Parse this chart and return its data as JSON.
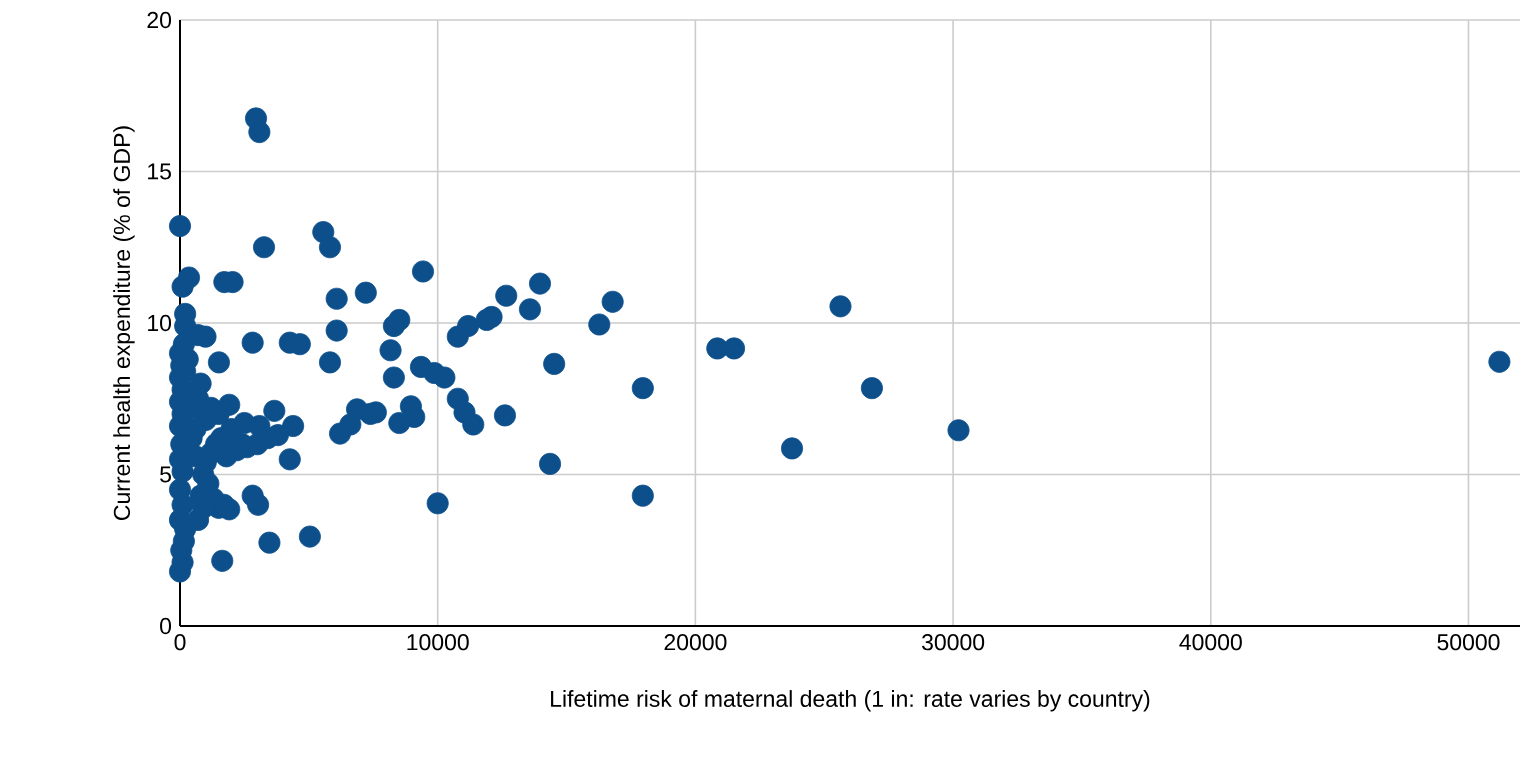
{
  "chart_data": {
    "type": "scatter",
    "xlabel": "Lifetime risk of maternal death (1 in: rate varies by country)",
    "ylabel": "Current health expenditure (% of GDP)",
    "color": "#0d4f8b",
    "marker": "circle",
    "grid": true,
    "xlim": [
      0,
      52000
    ],
    "xticks": [
      0,
      10000,
      20000,
      30000,
      40000,
      50000
    ],
    "ylim": [
      0,
      20
    ],
    "yticks": [
      0,
      5,
      10,
      15,
      20
    ],
    "x": [
      2950,
      3080,
      0,
      3260,
      5560,
      5820,
      100,
      350,
      1720,
      2040,
      9430,
      7210,
      6080,
      6080,
      5820,
      200,
      200,
      990,
      2820,
      4260,
      4650,
      1510,
      8300,
      8510,
      8170,
      8300,
      9350,
      9870,
      10260,
      10780,
      11180,
      11900,
      12090,
      12660,
      13580,
      13970,
      16270,
      16790,
      14520,
      17960,
      14360,
      17960,
      12610,
      10780,
      11040,
      11380,
      8960,
      9090,
      8510,
      6870,
      7390,
      7600,
      6610,
      6210,
      10000,
      5040,
      3470,
      1640,
      2820,
      3030,
      4260,
      3660,
      4390,
      1910,
      3080,
      1910,
      20850,
      21500,
      25630,
      26850,
      23750,
      30210,
      51200,
      0,
      100,
      50,
      150,
      200,
      0,
      100,
      0,
      100,
      0,
      600,
      50,
      450,
      0,
      100,
      500,
      0,
      100,
      0,
      200,
      50,
      300,
      0,
      150,
      700,
      800,
      900,
      1000,
      1200,
      1400,
      1600,
      2000,
      2400,
      1800,
      2200,
      2600,
      3000,
      3400,
      3800,
      1100,
      1300,
      1500,
      1000,
      1200,
      700,
      800,
      600,
      700,
      900,
      1700,
      2500,
      1500
    ],
    "values": [
      16.75,
      16.3,
      13.2,
      12.5,
      13.0,
      12.5,
      11.2,
      11.5,
      11.35,
      11.35,
      11.7,
      11.0,
      10.8,
      9.75,
      8.7,
      10.3,
      9.9,
      9.55,
      9.35,
      9.35,
      9.3,
      8.7,
      9.9,
      10.1,
      9.1,
      8.2,
      8.55,
      8.35,
      8.2,
      9.55,
      9.9,
      10.1,
      10.2,
      10.9,
      10.45,
      11.3,
      9.95,
      10.7,
      8.65,
      7.85,
      5.35,
      4.3,
      6.95,
      7.5,
      7.05,
      6.65,
      7.25,
      6.9,
      6.7,
      7.15,
      7.0,
      7.05,
      6.65,
      6.35,
      4.05,
      2.95,
      2.75,
      2.15,
      4.3,
      4.0,
      5.5,
      7.1,
      6.6,
      7.3,
      6.6,
      3.85,
      9.16,
      9.16,
      10.55,
      7.85,
      5.86,
      6.46,
      8.72,
      1.8,
      2.1,
      2.5,
      2.8,
      3.2,
      3.5,
      4.0,
      4.5,
      5.1,
      5.5,
      5.6,
      6.0,
      6.2,
      6.6,
      7.0,
      7.2,
      7.4,
      7.8,
      8.2,
      8.4,
      8.6,
      8.8,
      9.0,
      9.3,
      9.6,
      4.3,
      5.0,
      5.4,
      5.7,
      6.0,
      6.2,
      6.5,
      6.0,
      5.6,
      5.8,
      5.9,
      6.0,
      6.2,
      6.3,
      4.7,
      4.2,
      3.9,
      6.8,
      7.2,
      7.5,
      8.0,
      6.5,
      3.5,
      3.9,
      4.0,
      6.7,
      7.0
    ]
  }
}
